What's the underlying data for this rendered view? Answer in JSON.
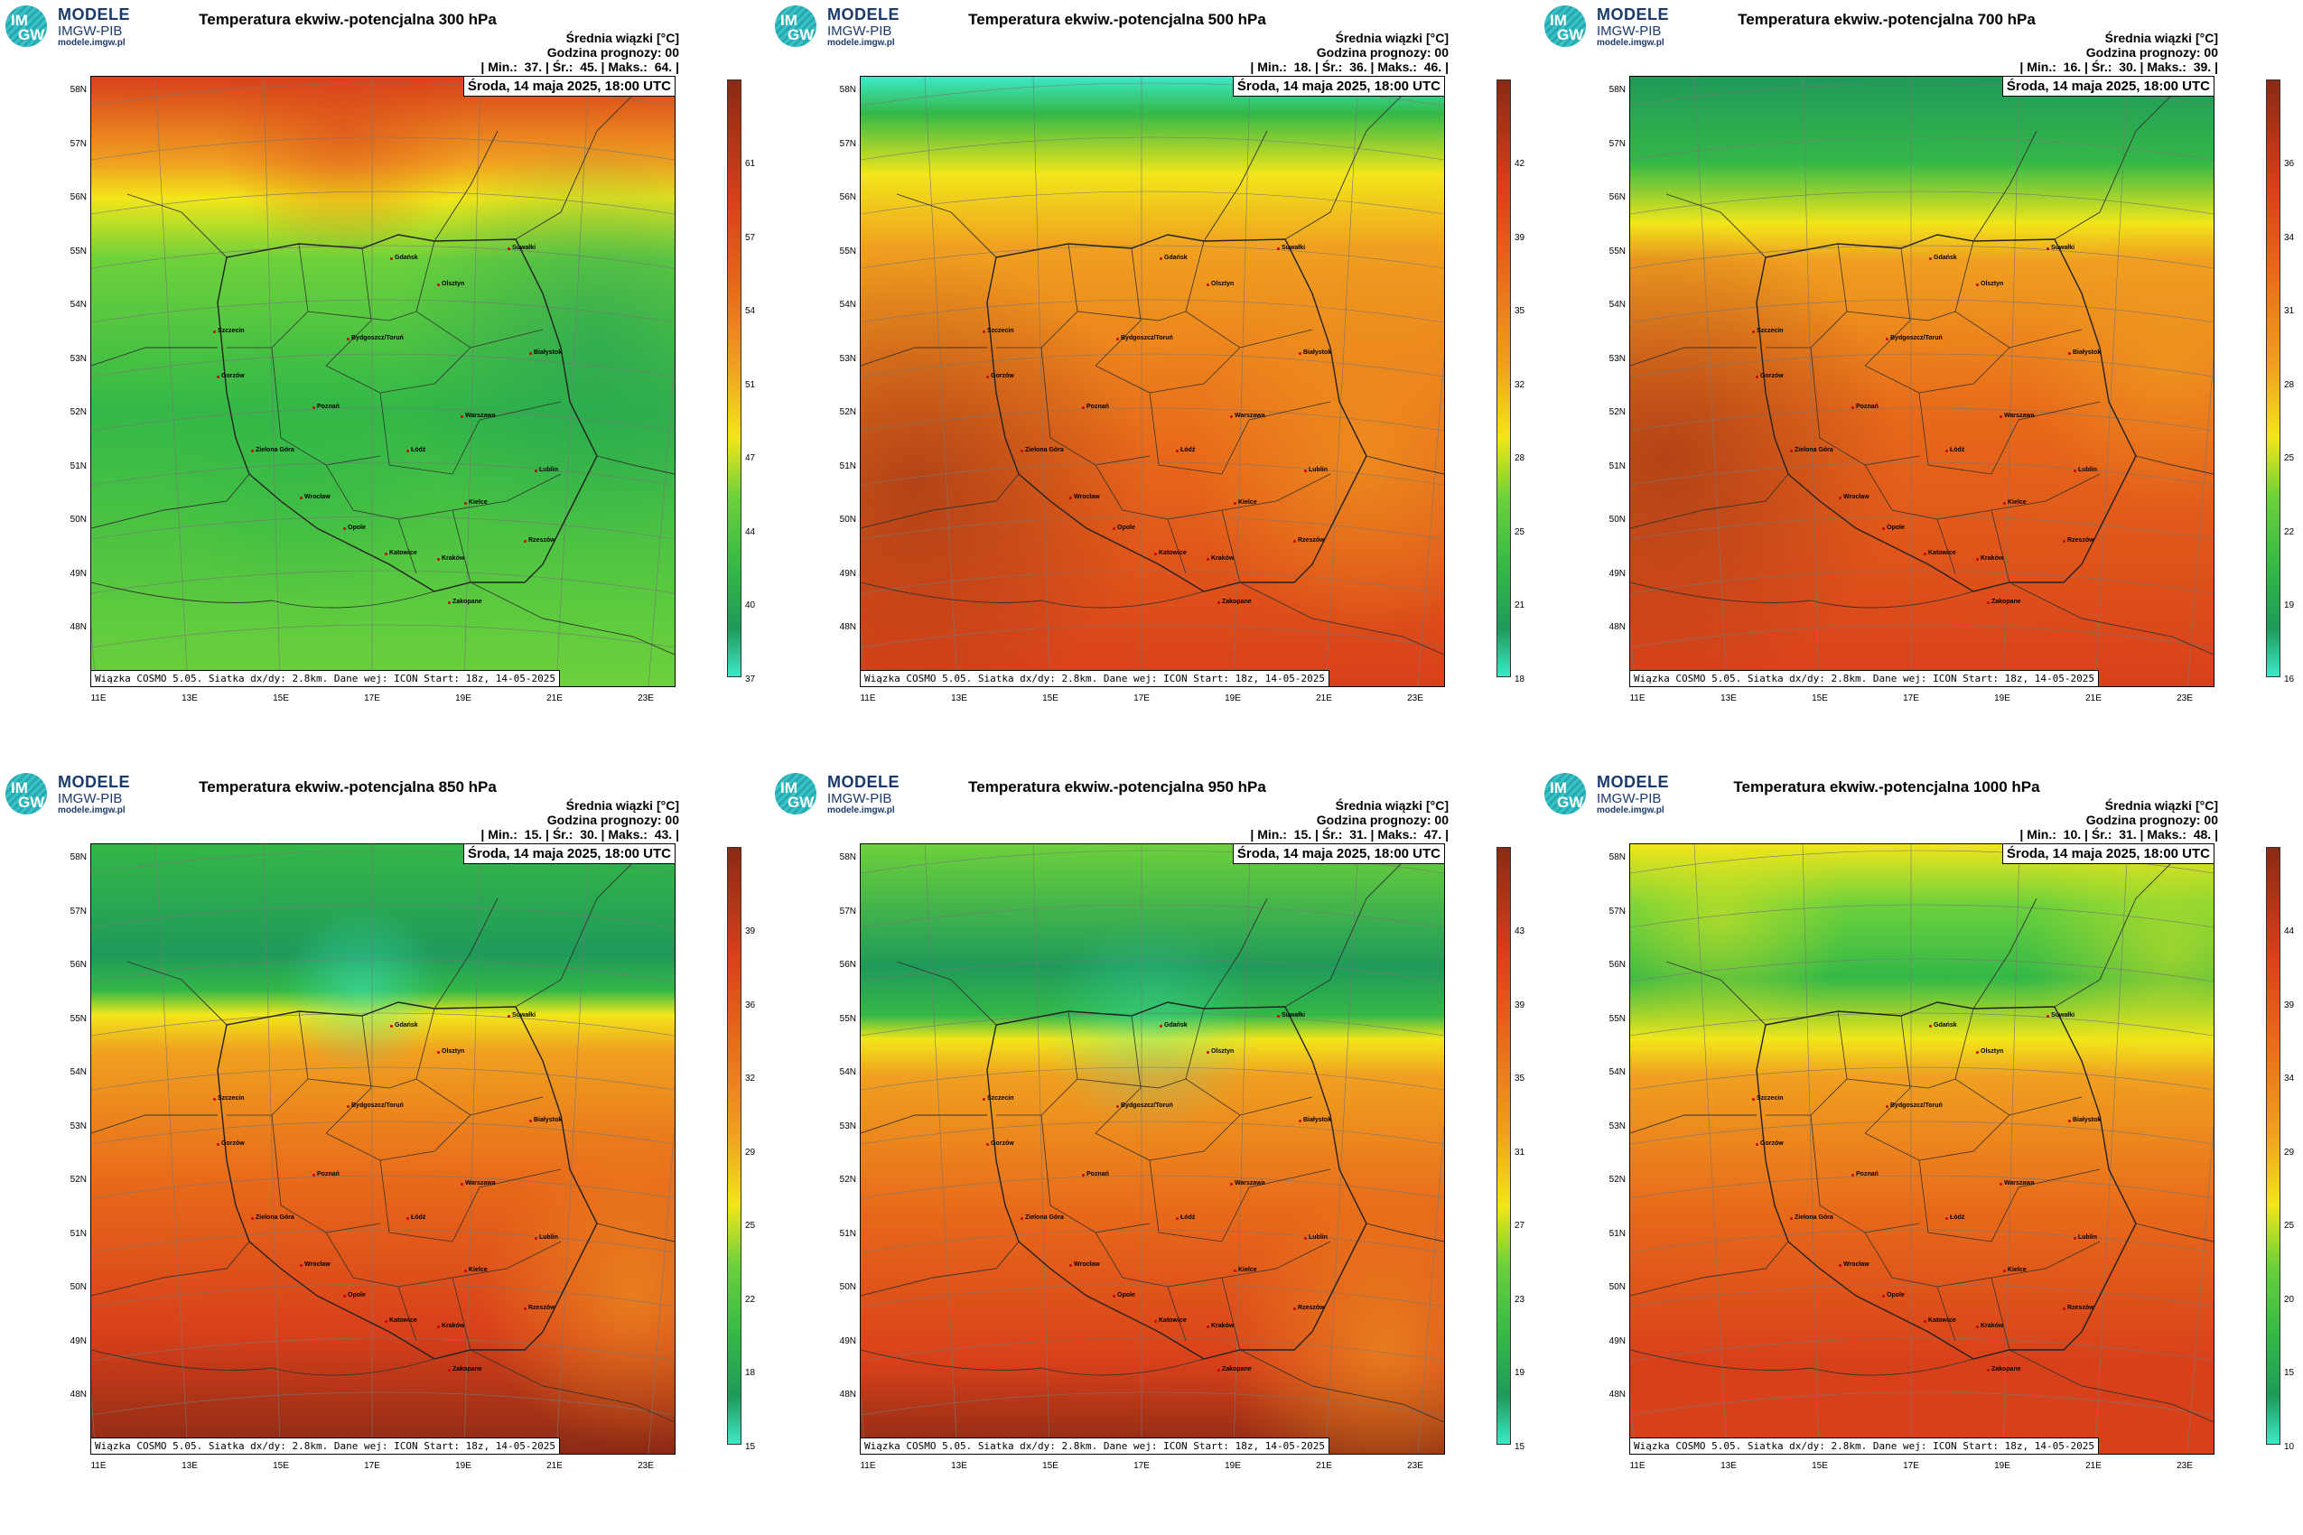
{
  "logo": {
    "mark_top": "IM",
    "mark_bottom": "GW",
    "title": "MODELE",
    "subtitle": "IMGW-PIB",
    "url": "modele.imgw.pl"
  },
  "header": {
    "avg_label": "Średnia wiązki [°C]",
    "forecast_hour": "Godzina prognozy: 00",
    "date": "Środa, 14 maja 2025, 18:00 UTC"
  },
  "footer": "Wiązka COSMO 5.05. Siatka dx/dy: 2.8km. Dane wej: ICON Start: 18z, 14-05-2025",
  "lat_labels": [
    "58N",
    "57N",
    "56N",
    "55N",
    "54N",
    "53N",
    "52N",
    "51N",
    "50N",
    "49N",
    "48N"
  ],
  "lon_labels": [
    "11E",
    "13E",
    "15E",
    "17E",
    "19E",
    "21E",
    "23E"
  ],
  "cities": [
    "Gdańsk",
    "Olsztyn",
    "Suwałki",
    "Szczecin",
    "Bydgoszcz/Toruń",
    "Białystok",
    "Gorzów",
    "Poznań",
    "Warszawa",
    "Zielona Góra",
    "Łódź",
    "Lublin",
    "Wrocław",
    "Kielce",
    "Opole",
    "Rzeszów",
    "Katowice",
    "Kraków",
    "Zakopane"
  ],
  "colors": {
    "green_dark": "#1f9a5a",
    "green": "#33b847",
    "green_light": "#6cd13b",
    "cyan": "#3ee8c8",
    "yellow": "#f2e61a",
    "orange": "#f0a020",
    "orange_red": "#e86a1a",
    "red": "#d8401a",
    "dark_red": "#8a2a14"
  },
  "panels": [
    {
      "id": "p300",
      "title": "Temperatura ekwiw.-potencjalna 300 hPa",
      "min": "37.",
      "avg": "45.",
      "max": "64.",
      "scale": [
        "61",
        "57",
        "54",
        "51",
        "47",
        "44",
        "40",
        "37"
      ]
    },
    {
      "id": "p500",
      "title": "Temperatura ekwiw.-potencjalna 500 hPa",
      "min": "18.",
      "avg": "36.",
      "max": "46.",
      "scale": [
        "42",
        "39",
        "35",
        "32",
        "28",
        "25",
        "21",
        "18"
      ]
    },
    {
      "id": "p700",
      "title": "Temperatura ekwiw.-potencjalna 700 hPa",
      "min": "16.",
      "avg": "30.",
      "max": "39.",
      "scale": [
        "36",
        "34",
        "31",
        "28",
        "25",
        "22",
        "19",
        "16"
      ]
    },
    {
      "id": "p850",
      "title": "Temperatura ekwiw.-potencjalna 850 hPa",
      "min": "15.",
      "avg": "30.",
      "max": "43.",
      "scale": [
        "39",
        "36",
        "32",
        "29",
        "25",
        "22",
        "18",
        "15"
      ]
    },
    {
      "id": "p950",
      "title": "Temperatura ekwiw.-potencjalna 950 hPa",
      "min": "15.",
      "avg": "31.",
      "max": "47.",
      "scale": [
        "43",
        "39",
        "35",
        "31",
        "27",
        "23",
        "19",
        "15"
      ]
    },
    {
      "id": "p1000",
      "title": "Temperatura ekwiw.-potencjalna 1000 hPa",
      "min": "10.",
      "avg": "31.",
      "max": "48.",
      "scale": [
        "44",
        "39",
        "34",
        "29",
        "25",
        "20",
        "15",
        "10"
      ]
    }
  ]
}
